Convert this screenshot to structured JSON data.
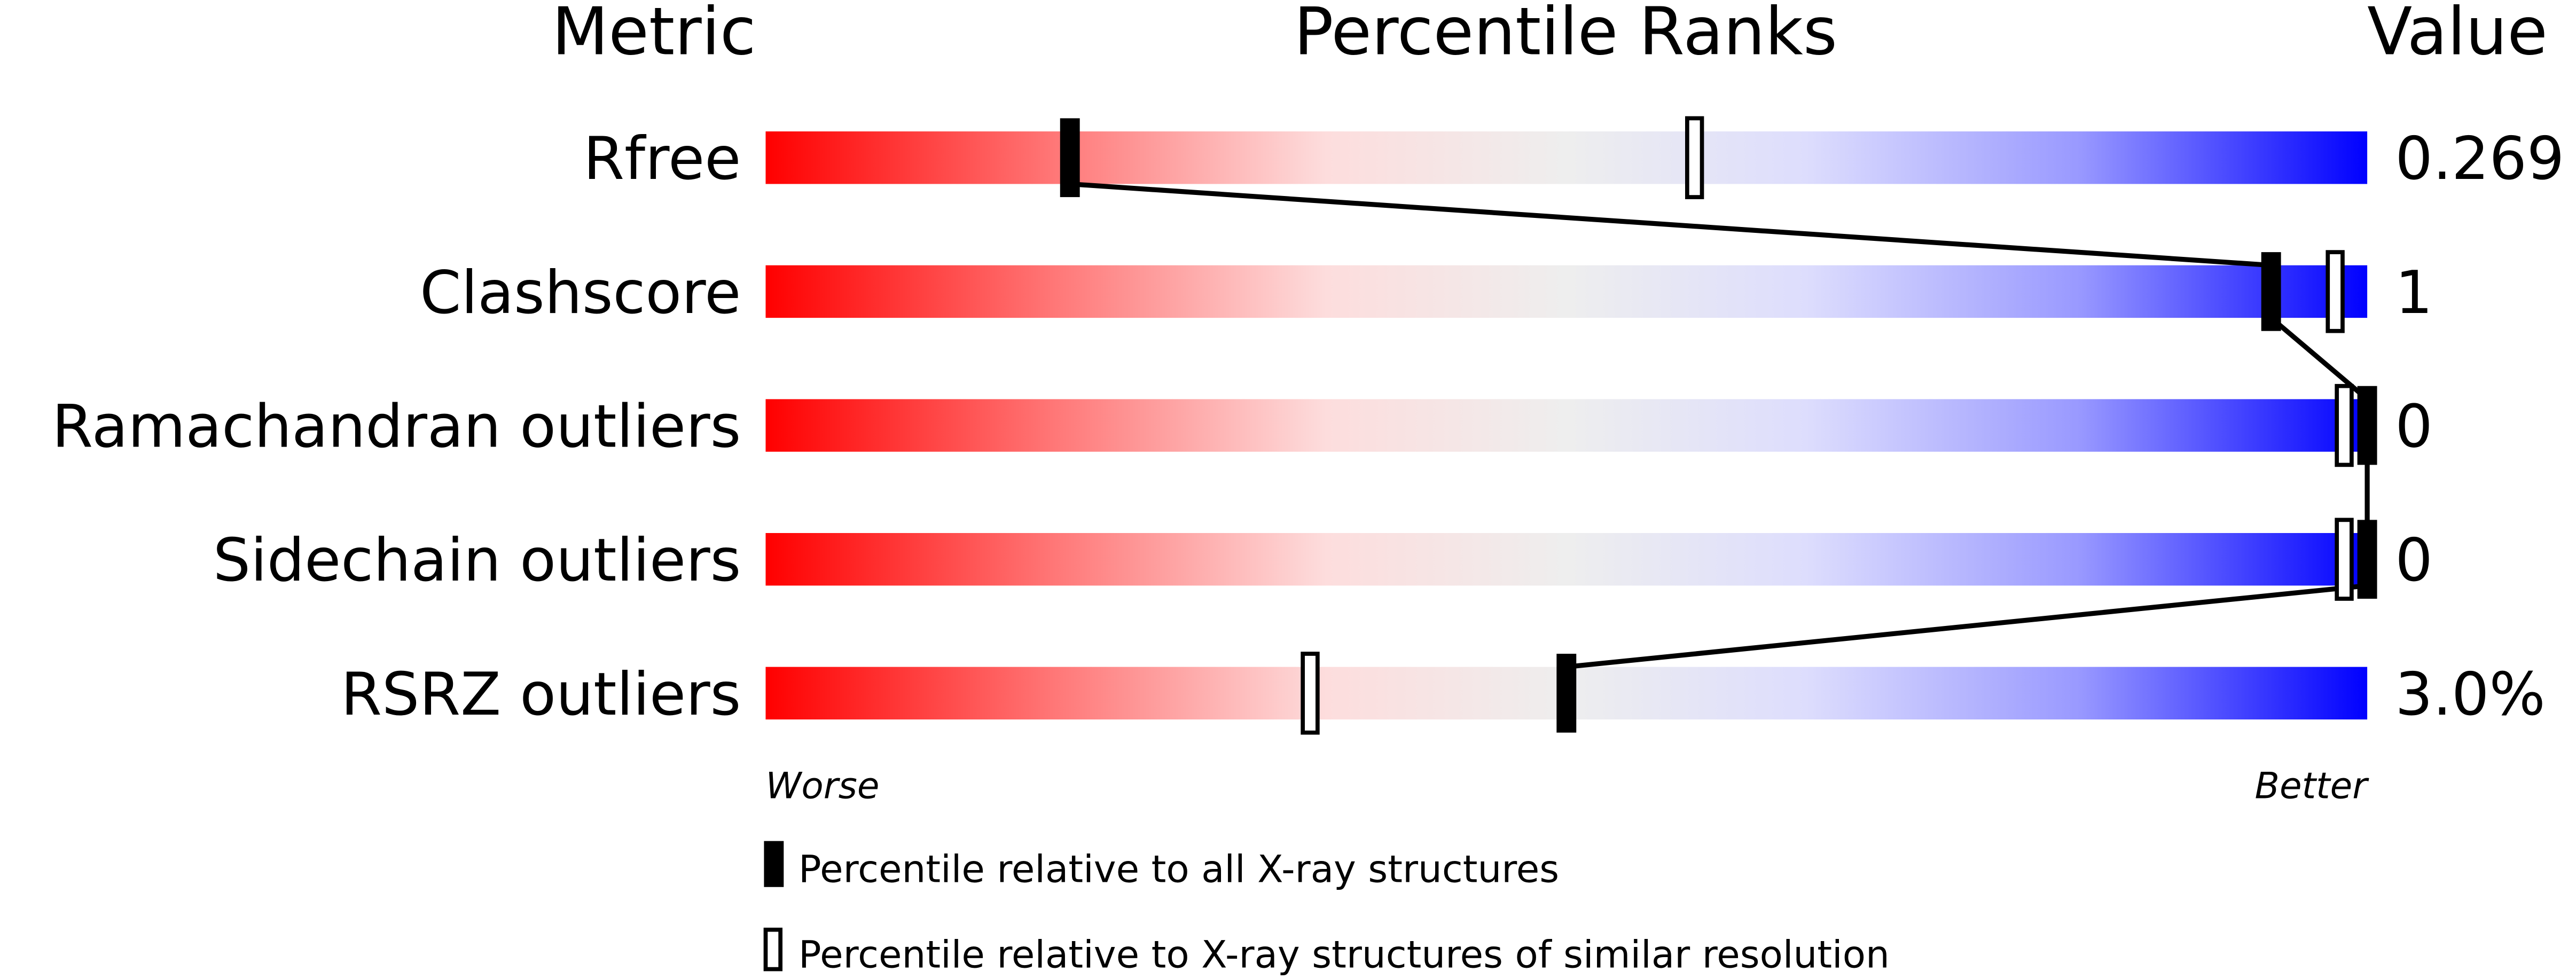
{
  "chart_data": {
    "type": "table",
    "headers": {
      "metric": "Metric",
      "ranks": "Percentile Ranks",
      "value": "Value"
    },
    "axis": {
      "worse_label": "Worse",
      "better_label": "Better",
      "range": [
        0,
        100
      ]
    },
    "rows": [
      {
        "metric": "Rfree",
        "value": "0.269",
        "percentile_all": 19,
        "percentile_similar": 58
      },
      {
        "metric": "Clashscore",
        "value": "1",
        "percentile_all": 94,
        "percentile_similar": 98
      },
      {
        "metric": "Ramachandran outliers",
        "value": "0",
        "percentile_all": 100,
        "percentile_similar": 100
      },
      {
        "metric": "Sidechain outliers",
        "value": "0",
        "percentile_all": 100,
        "percentile_similar": 100
      },
      {
        "metric": "RSRZ outliers",
        "value": "3.0%",
        "percentile_all": 50,
        "percentile_similar": 34
      }
    ],
    "legend": [
      {
        "marker": "filled",
        "label": "Percentile relative to all X-ray structures"
      },
      {
        "marker": "open",
        "label": "Percentile relative to X-ray structures of similar resolution"
      }
    ],
    "colors": {
      "worse": "#ff0000",
      "middle": "#eeeeee",
      "better": "#0000ff"
    }
  }
}
